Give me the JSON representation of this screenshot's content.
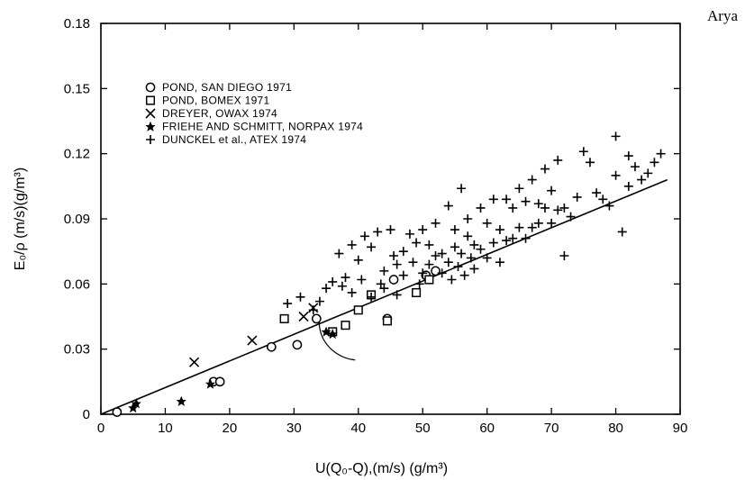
{
  "corner_label": "Arya",
  "chart_data": {
    "type": "scatter",
    "title": "",
    "xlabel": "U(Q₀-Q),(m/s) (g/m³)",
    "ylabel": "E₀/ρ (m/s)(g/m³)",
    "xlim": [
      0,
      90
    ],
    "ylim": [
      0,
      0.18
    ],
    "x_ticks": [
      "0",
      "10",
      "20",
      "30",
      "40",
      "50",
      "60",
      "70",
      "80",
      "90"
    ],
    "y_ticks": [
      "0",
      "0.03",
      "0.06",
      "0.09",
      "0.12",
      "0.15",
      "0.18"
    ],
    "grid": false,
    "legend_position": "top-left",
    "fit_line": {
      "x": [
        0,
        88
      ],
      "y": [
        0,
        0.108
      ]
    },
    "series": [
      {
        "name": "POND, SAN DIEGO 1971",
        "marker": "circle",
        "x": [
          2.5,
          17.5,
          18.5,
          26.5,
          30.5,
          33.5,
          44.5,
          45.5,
          50.5,
          52
        ],
        "y": [
          0.001,
          0.015,
          0.015,
          0.031,
          0.032,
          0.044,
          0.044,
          0.062,
          0.064,
          0.066
        ]
      },
      {
        "name": "POND, BOMEX 1971",
        "marker": "square",
        "x": [
          28.5,
          36,
          38,
          40,
          42,
          44.5,
          49,
          51
        ],
        "y": [
          0.044,
          0.038,
          0.041,
          0.048,
          0.055,
          0.043,
          0.056,
          0.062
        ]
      },
      {
        "name": "DREYER, OWAX 1974",
        "marker": "x",
        "x": [
          14.5,
          23.5,
          31.5,
          33
        ],
        "y": [
          0.024,
          0.034,
          0.045,
          0.049
        ]
      },
      {
        "name": "FRIEHE AND SCHMITT, NORPAX 1974",
        "marker": "star",
        "x": [
          5,
          5.5,
          12.5,
          17,
          35,
          36
        ],
        "y": [
          0.003,
          0.005,
          0.006,
          0.014,
          0.038,
          0.037
        ]
      },
      {
        "name": "DUNCKEL et al., ATEX 1974",
        "marker": "plus",
        "x": [
          29,
          31,
          33,
          34,
          35,
          36,
          37,
          37.5,
          38,
          39,
          39,
          40,
          40.5,
          41,
          42,
          42,
          43,
          43.5,
          44,
          44,
          45,
          45.5,
          46,
          46,
          47,
          47,
          48,
          48.5,
          49,
          49.5,
          50,
          50,
          51,
          51,
          52,
          52,
          53,
          53,
          54,
          54,
          54.5,
          55,
          55,
          55.5,
          56,
          56,
          56.5,
          57,
          57,
          57.5,
          58,
          58,
          59,
          59,
          60,
          60,
          61,
          61,
          62,
          62,
          63,
          63,
          64,
          64,
          65,
          65,
          66,
          66,
          67,
          67,
          68,
          68,
          69,
          69,
          70,
          70,
          71,
          71,
          72,
          72,
          73,
          74,
          75,
          76,
          77,
          78,
          79,
          80,
          80,
          81,
          82,
          82,
          83,
          84,
          85,
          86,
          87
        ],
        "y": [
          0.051,
          0.054,
          0.048,
          0.052,
          0.058,
          0.061,
          0.074,
          0.059,
          0.063,
          0.078,
          0.056,
          0.071,
          0.062,
          0.082,
          0.077,
          0.054,
          0.084,
          0.06,
          0.066,
          0.058,
          0.085,
          0.073,
          0.069,
          0.055,
          0.075,
          0.064,
          0.083,
          0.07,
          0.079,
          0.06,
          0.085,
          0.065,
          0.078,
          0.069,
          0.088,
          0.073,
          0.074,
          0.065,
          0.096,
          0.07,
          0.062,
          0.085,
          0.077,
          0.068,
          0.104,
          0.074,
          0.064,
          0.09,
          0.082,
          0.072,
          0.078,
          0.067,
          0.095,
          0.076,
          0.088,
          0.072,
          0.099,
          0.079,
          0.085,
          0.07,
          0.099,
          0.08,
          0.095,
          0.081,
          0.104,
          0.086,
          0.098,
          0.081,
          0.108,
          0.086,
          0.097,
          0.088,
          0.113,
          0.095,
          0.103,
          0.088,
          0.117,
          0.094,
          0.095,
          0.073,
          0.091,
          0.1,
          0.121,
          0.116,
          0.102,
          0.099,
          0.096,
          0.128,
          0.11,
          0.084,
          0.119,
          0.105,
          0.114,
          0.108,
          0.111,
          0.116,
          0.12
        ]
      }
    ]
  }
}
